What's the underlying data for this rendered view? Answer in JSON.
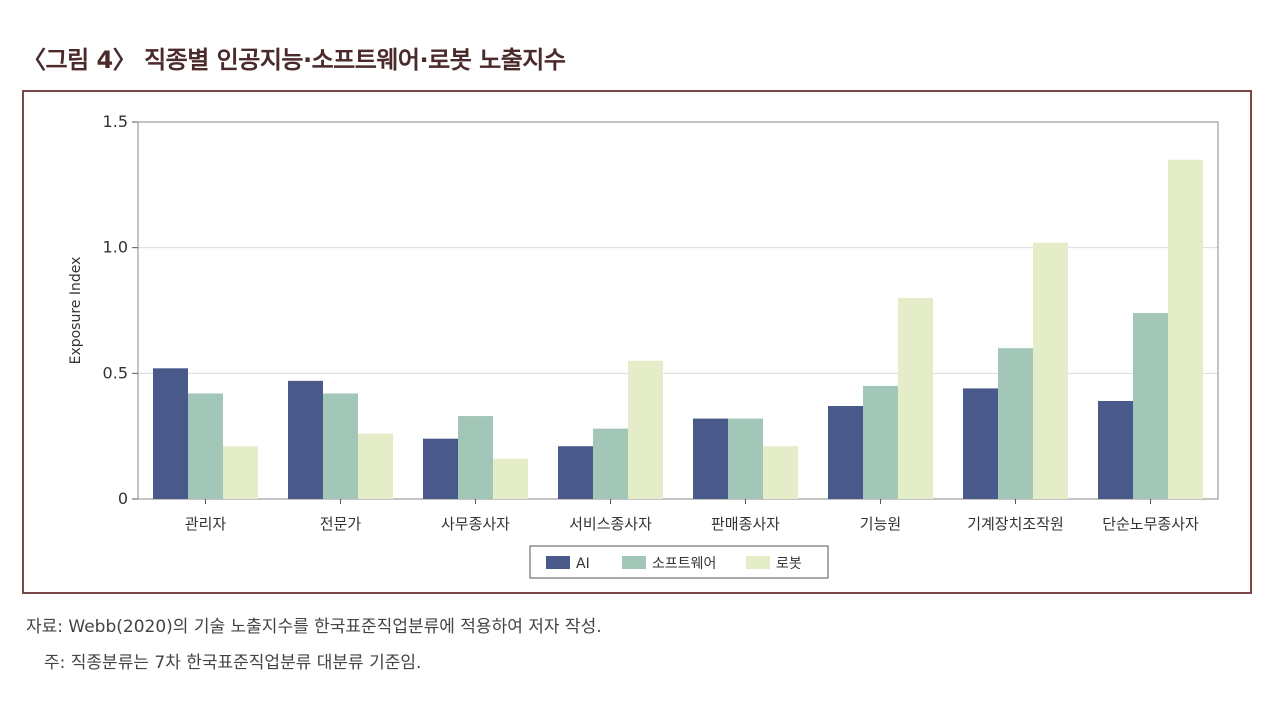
{
  "figure_title": "〈그림 4〉 직종별 인공지능·소프트웨어·로봇 노출지수",
  "colors": {
    "AI": "#48598a",
    "software": "#a2c7b8",
    "robot": "#e4ecc8",
    "frame": "#7a4a4a",
    "grid": "#dcdcdc"
  },
  "chart_data": {
    "type": "bar",
    "ylabel": "Exposure Index",
    "xlabel": "",
    "ylim": [
      0,
      1.5
    ],
    "yticks": [
      "0",
      "0.5",
      "1.0",
      "1.5"
    ],
    "ytick_values": [
      0,
      0.5,
      1.0,
      1.5
    ],
    "grid": true,
    "legend_position": "bottom-center",
    "categories": [
      "관리자",
      "전문가",
      "사무종사자",
      "서비스종사자",
      "판매종사자",
      "기능원",
      "기계장치조작원",
      "단순노무종사자"
    ],
    "series": [
      {
        "name": "AI",
        "color_key": "AI",
        "values": [
          0.52,
          0.47,
          0.24,
          0.21,
          0.32,
          0.37,
          0.44,
          0.39
        ]
      },
      {
        "name": "소프트웨어",
        "color_key": "software",
        "values": [
          0.42,
          0.42,
          0.33,
          0.28,
          0.32,
          0.45,
          0.6,
          0.74
        ]
      },
      {
        "name": "로봇",
        "color_key": "robot",
        "values": [
          0.21,
          0.26,
          0.16,
          0.55,
          0.21,
          0.8,
          1.02,
          1.35
        ]
      }
    ]
  },
  "notes": {
    "source": "자료: Webb(2020)의 기술 노출지수를 한국표준직업분류에 적용하여 저자 작성.",
    "footnote": "주: 직종분류는 7차 한국표준직업분류 대분류 기준임."
  }
}
